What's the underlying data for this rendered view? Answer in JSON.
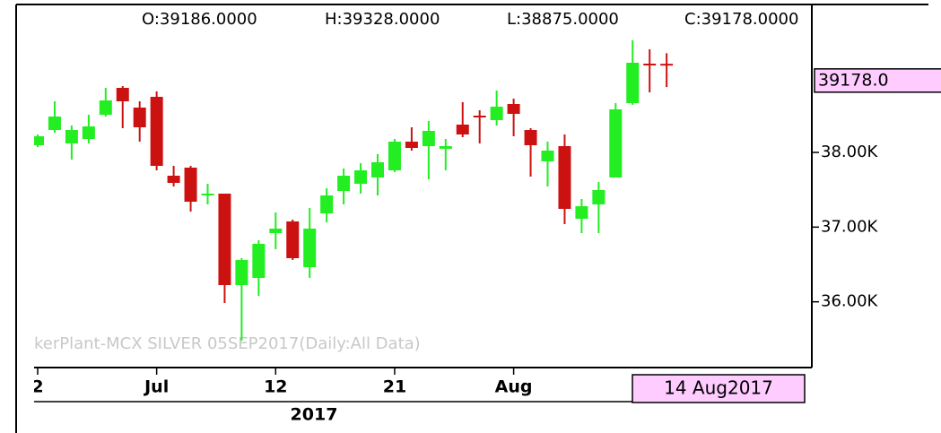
{
  "chart_data": {
    "type": "candlestick",
    "header": [
      "O:39186.0000",
      "H:39328.0000",
      "L:38875.0000",
      "C:39178.0000"
    ],
    "watermark": "kerPlant-MCX SILVER 05SEP2017(Daily:All Data)",
    "last_price_label": "39178.0",
    "date_label": "14 Aug2017",
    "year_label": "2017",
    "up_color": "#22ee22",
    "down_color": "#cc1111",
    "categories": [
      "2",
      null,
      null,
      null,
      null,
      null,
      null,
      "Jul",
      null,
      null,
      null,
      null,
      null,
      null,
      "12",
      null,
      null,
      null,
      null,
      null,
      null,
      "21",
      null,
      null,
      null,
      null,
      null,
      null,
      "Aug",
      null,
      null,
      null,
      null,
      null,
      null,
      null,
      null,
      null
    ],
    "open": [
      38096,
      38300,
      38120,
      38180,
      38504,
      38864,
      38600,
      38744,
      37688,
      37796,
      37424,
      37448,
      36224,
      36320,
      36920,
      37076,
      36464,
      37184,
      37484,
      37580,
      37664,
      37760,
      38144,
      38084,
      38048,
      38372,
      38492,
      38432,
      38648,
      38300,
      37880,
      38084,
      37112,
      37304,
      37664,
      38660,
      39188,
      39186
    ],
    "high": [
      38240,
      38684,
      38360,
      38504,
      38864,
      38888,
      38684,
      38816,
      37820,
      37820,
      37580,
      37448,
      36584,
      36824,
      37196,
      37100,
      37256,
      37520,
      37784,
      37856,
      37976,
      38180,
      38336,
      38420,
      38180,
      38672,
      38564,
      38828,
      38720,
      38324,
      38144,
      38240,
      37376,
      37604,
      38660,
      39500,
      39380,
      39328
    ],
    "low": [
      38072,
      38264,
      37904,
      38120,
      38480,
      38324,
      38144,
      37760,
      37544,
      37208,
      37304,
      35984,
      35480,
      36080,
      36704,
      36560,
      36320,
      37064,
      37304,
      37448,
      37424,
      37736,
      38024,
      37640,
      37760,
      38204,
      38120,
      38360,
      38216,
      37676,
      37544,
      37040,
      36920,
      36920,
      37664,
      38636,
      38804,
      38875
    ],
    "close": [
      38216,
      38480,
      38300,
      38348,
      38696,
      38684,
      38336,
      37820,
      37592,
      37340,
      37448,
      36224,
      36560,
      36776,
      36980,
      36584,
      36980,
      37424,
      37688,
      37760,
      37868,
      38144,
      38060,
      38288,
      38084,
      38240,
      38468,
      38612,
      38516,
      38096,
      38024,
      37244,
      37280,
      37496,
      38576,
      39200,
      39176,
      39178
    ],
    "ylim": [
      35120,
      39680
    ],
    "yticks": [
      {
        "value": 38000,
        "label": "38.00K"
      },
      {
        "value": 37000,
        "label": "37.00K"
      },
      {
        "value": 36000,
        "label": "36.00K"
      }
    ]
  }
}
